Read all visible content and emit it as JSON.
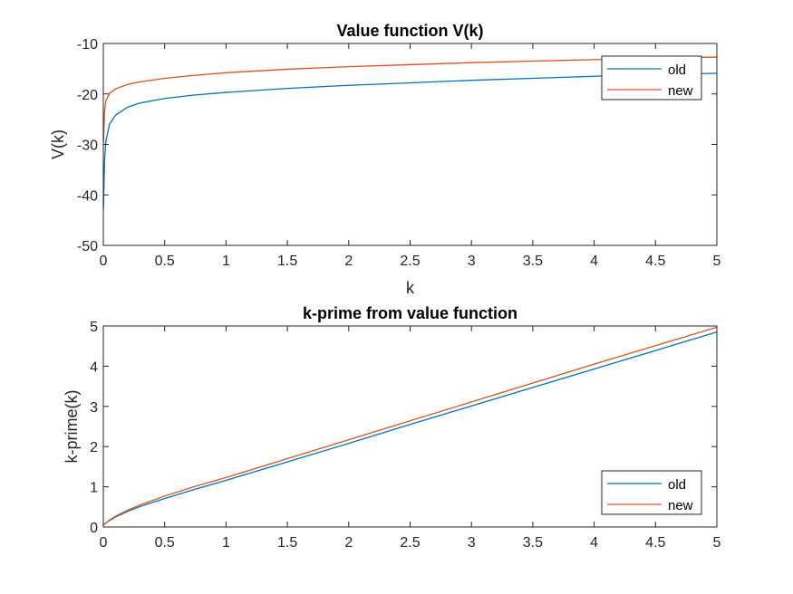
{
  "chart_data": [
    {
      "type": "line",
      "title": "Value function V(k)",
      "xlabel": "k",
      "ylabel": "V(k)",
      "xlim": [
        0,
        5
      ],
      "ylim": [
        -50,
        -10
      ],
      "xticks": [
        "0",
        "0.5",
        "1",
        "1.5",
        "2",
        "2.5",
        "3",
        "3.5",
        "4",
        "4.5",
        "5"
      ],
      "yticks": [
        "-50",
        "-40",
        "-30",
        "-20",
        "-10"
      ],
      "grid": false,
      "legend_position": "top-right",
      "x": [
        0.001,
        0.01,
        0.02,
        0.05,
        0.1,
        0.2,
        0.3,
        0.5,
        0.75,
        1,
        1.5,
        2,
        2.5,
        3,
        3.5,
        4,
        4.5,
        5
      ],
      "series": [
        {
          "name": "old",
          "color": "#0072BD",
          "values": [
            -42.7,
            -33.3,
            -29.5,
            -26.0,
            -24.2,
            -22.6,
            -21.8,
            -20.9,
            -20.2,
            -19.7,
            -18.9,
            -18.3,
            -17.8,
            -17.3,
            -16.9,
            -16.5,
            -16.2,
            -15.9
          ]
        },
        {
          "name": "new",
          "color": "#D95319",
          "values": [
            -29.6,
            -23.5,
            -21.4,
            -19.9,
            -19.0,
            -18.1,
            -17.6,
            -16.9,
            -16.3,
            -15.8,
            -15.1,
            -14.6,
            -14.2,
            -13.8,
            -13.5,
            -13.2,
            -12.9,
            -12.7
          ]
        }
      ]
    },
    {
      "type": "line",
      "title": "k-prime from value function",
      "xlabel": "",
      "ylabel": "k-prime(k)",
      "xlim": [
        0,
        5
      ],
      "ylim": [
        0,
        5
      ],
      "xticks": [
        "0",
        "0.5",
        "1",
        "1.5",
        "2",
        "2.5",
        "3",
        "3.5",
        "4",
        "4.5",
        "5"
      ],
      "yticks": [
        "0",
        "1",
        "2",
        "3",
        "4",
        "5"
      ],
      "grid": false,
      "legend_position": "bottom-right",
      "x": [
        0,
        0.05,
        0.1,
        0.2,
        0.3,
        0.5,
        0.75,
        1,
        1.5,
        2,
        2.5,
        3,
        3.5,
        4,
        4.5,
        5
      ],
      "series": [
        {
          "name": "old",
          "color": "#0072BD",
          "values": [
            0.05,
            0.16,
            0.25,
            0.39,
            0.51,
            0.71,
            0.94,
            1.16,
            1.62,
            2.08,
            2.55,
            3.01,
            3.47,
            3.93,
            4.39,
            4.85
          ]
        },
        {
          "name": "new",
          "color": "#D95319",
          "values": [
            0.05,
            0.17,
            0.27,
            0.42,
            0.55,
            0.77,
            1.01,
            1.23,
            1.7,
            2.17,
            2.64,
            3.11,
            3.58,
            4.05,
            4.51,
            4.97
          ]
        }
      ]
    }
  ]
}
